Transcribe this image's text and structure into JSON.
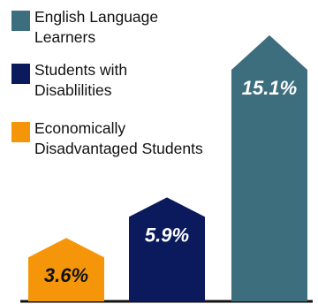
{
  "colors": {
    "baseline": "#111111",
    "label_dark": "#111111",
    "label_light": "#ffffff"
  },
  "legend": [
    {
      "label_line1": "English Language",
      "label_line2": "Learners",
      "color": "#3d6e7e"
    },
    {
      "label_line1": "Students with",
      "label_line2": "Disablilities",
      "color": "#0a1a5c"
    },
    {
      "label_line1": "Economically",
      "label_line2": "Disadvantaged Students",
      "color": "#f5960a"
    }
  ],
  "chart_data": {
    "type": "bar",
    "title": "",
    "xlabel": "",
    "ylabel": "",
    "categories": [
      "Economically Disadvantaged Students",
      "Students with Disablilities",
      "English Language Learners"
    ],
    "values": [
      3.6,
      5.9,
      15.1
    ],
    "value_labels": [
      "3.6%",
      "5.9%",
      "15.1%"
    ],
    "colors": [
      "#f5960a",
      "#0a1a5c",
      "#3d6e7e"
    ],
    "label_colors": [
      "#111111",
      "#ffffff",
      "#ffffff"
    ],
    "shape": "house",
    "ylim": [
      0,
      16.5
    ],
    "grid": false,
    "legend_position": "top-left"
  }
}
